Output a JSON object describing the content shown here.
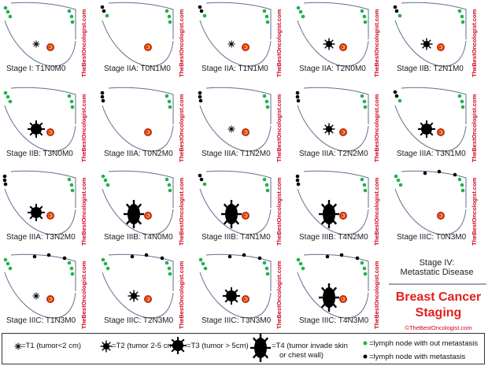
{
  "watermark": "TheBestOncologist.com",
  "colors": {
    "breast_outline": "#5e6f8e",
    "node_normal": "#22b14c",
    "node_metastasis": "#000000",
    "tumor": "#000000",
    "nipple_outer": "#c0261b",
    "nipple_inner": "#f7941d",
    "title_red": "#e02020"
  },
  "panels": [
    {
      "label": "Stage I: T1N0M0",
      "tumor": "T1",
      "n": 0
    },
    {
      "label": "Stage IIA: T0N1M0",
      "tumor": "T0",
      "n": 1
    },
    {
      "label": "Stage IIA: T1N1M0",
      "tumor": "T1",
      "n": 1
    },
    {
      "label": "Stage IIA: T2N0M0",
      "tumor": "T2",
      "n": 0
    },
    {
      "label": "Stage IIB: T2N1M0",
      "tumor": "T2",
      "n": 1
    },
    {
      "label": "Stage IIB: T3N0M0",
      "tumor": "T3",
      "n": 0
    },
    {
      "label": "Stage IIIA: T0N2M0",
      "tumor": "T0",
      "n": 2
    },
    {
      "label": "Stage IIIA: T1N2M0",
      "tumor": "T1",
      "n": 2
    },
    {
      "label": "Stage IIIA: T2N2M0",
      "tumor": "T2",
      "n": 2
    },
    {
      "label": "Stage IIIA: T3N1M0",
      "tumor": "T3",
      "n": 1
    },
    {
      "label": "Stage IIIA: T3N2M0",
      "tumor": "T3",
      "n": 2
    },
    {
      "label": "Stage IIIB: T4N0M0",
      "tumor": "T4",
      "n": 0
    },
    {
      "label": "Stage IIIB: T4N1M0",
      "tumor": "T4",
      "n": 1
    },
    {
      "label": "Stage IIIB: T4N2M0",
      "tumor": "T4",
      "n": 2
    },
    {
      "label": "Stage IIIC: T0N3M0",
      "tumor": "T0",
      "n": 3
    },
    {
      "label": "Stage IIIC: T1N3M0",
      "tumor": "T1",
      "n": 3
    },
    {
      "label": "Stage IIIC: T2N3M0",
      "tumor": "T2",
      "n": 3
    },
    {
      "label": "Stage IIIC: T3N3M0",
      "tumor": "T3",
      "n": 3
    },
    {
      "label": "Stage IIIC: T4N3M0",
      "tumor": "T4",
      "n": 3
    }
  ],
  "stage4": {
    "title": "Stage IV:",
    "subtitle": "Metastatic Disease"
  },
  "title": "Breast Cancer Staging",
  "copyright": "©TheBestOncologist.com",
  "legend": {
    "t1": "=T1 (tumor<2 cm)",
    "t2": "=T2 (tumor 2-5 cm)",
    "t3": "=T3 (tumor > 5cm)",
    "t4_line1": "=T4 (tumor invade skin",
    "t4_line2": "or chest wall)",
    "node_normal": "=lymph node with out metastasis",
    "node_meta": "=lymph node with metastasis"
  }
}
